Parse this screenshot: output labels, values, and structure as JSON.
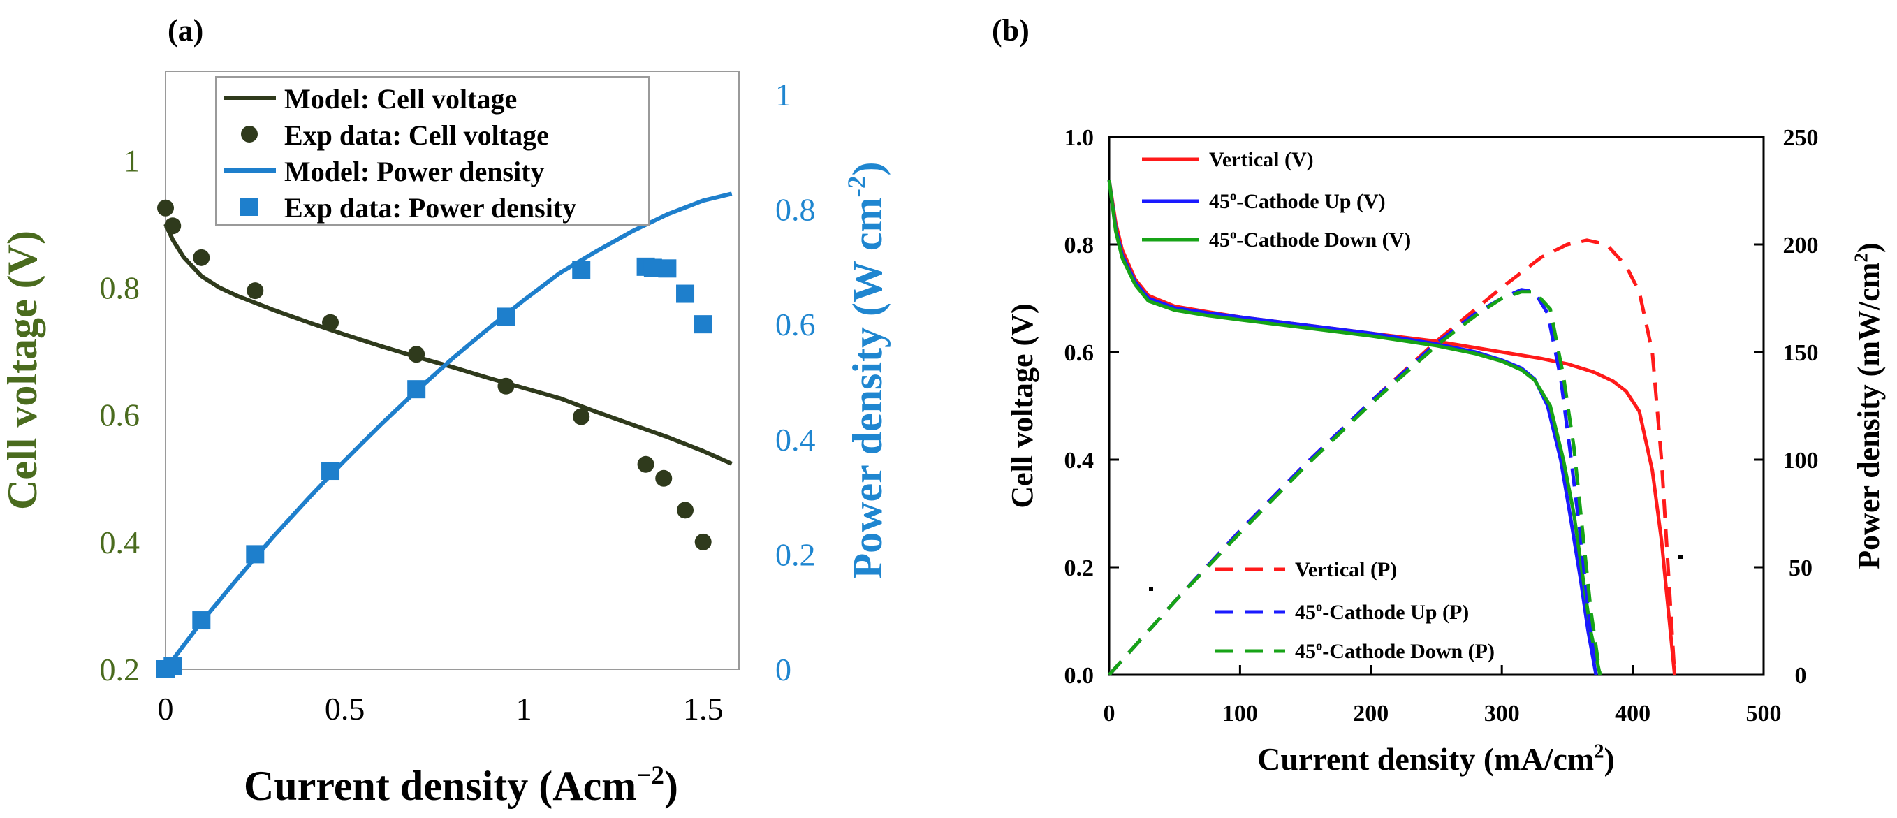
{
  "panels": {
    "a": {
      "label": "(a)"
    },
    "b": {
      "label": "(b)"
    }
  },
  "colors": {
    "dark_green": "#2f3a1c",
    "axis_green": "#4a6b1e",
    "blue": "#1e7fcc",
    "axis_blue": "#1f86d0",
    "red": "#ff1a1a",
    "b_blue": "#1a1aff",
    "b_green": "#17a317",
    "frame": "#9a9a9a",
    "black": "#000000"
  },
  "chart_data": [
    {
      "type": "line",
      "panel": "a",
      "title": "",
      "xlabel": "Current density (Acm",
      "xlabel_sup": "−2",
      "xlabel_end": ")",
      "ylabel": "Cell voltage (V)",
      "y2label": "Power density (W cm",
      "y2label_sup": "-2",
      "y2label_end": ")",
      "xlim": [
        0,
        1.6
      ],
      "ylim": [
        0.2,
        1.14
      ],
      "y2lim": [
        0,
        1.04
      ],
      "x_ticks": [
        0,
        0.5,
        1,
        1.5
      ],
      "x_tick_labels": [
        "0",
        "0.5",
        "1",
        "1.5"
      ],
      "y_ticks": [
        0.2,
        0.4,
        0.6,
        0.8,
        1
      ],
      "y_tick_labels": [
        "0.2",
        "0.4",
        "0.6",
        "0.8",
        "1"
      ],
      "y2_ticks": [
        0,
        0.2,
        0.4,
        0.6,
        0.8,
        1
      ],
      "y2_tick_labels": [
        "0",
        "0.2",
        "0.4",
        "0.6",
        "0.8",
        "1"
      ],
      "legend_position": "top-left",
      "series": [
        {
          "name": "Model: Cell voltage",
          "kind": "line",
          "axis": "left",
          "color": "#2f3a1c",
          "x": [
            0,
            0.02,
            0.05,
            0.1,
            0.15,
            0.2,
            0.3,
            0.4,
            0.5,
            0.6,
            0.7,
            0.8,
            0.9,
            1.0,
            1.1,
            1.2,
            1.3,
            1.4,
            1.5,
            1.58
          ],
          "y": [
            0.9,
            0.875,
            0.848,
            0.818,
            0.8,
            0.787,
            0.765,
            0.745,
            0.726,
            0.708,
            0.691,
            0.675,
            0.658,
            0.642,
            0.626,
            0.605,
            0.585,
            0.565,
            0.543,
            0.523
          ]
        },
        {
          "name": "Exp data: Cell voltage",
          "kind": "scatter",
          "marker": "circle",
          "axis": "left",
          "color": "#2f3a1c",
          "x": [
            0.0,
            0.02,
            0.1,
            0.25,
            0.46,
            0.7,
            0.95,
            1.16,
            1.34,
            1.39,
            1.45,
            1.5
          ],
          "y": [
            0.925,
            0.897,
            0.847,
            0.795,
            0.745,
            0.695,
            0.645,
            0.597,
            0.522,
            0.5,
            0.45,
            0.4
          ]
        },
        {
          "name": "Model: Power density",
          "kind": "line",
          "axis": "right",
          "color": "#1e7fcc",
          "x": [
            0,
            0.1,
            0.2,
            0.3,
            0.4,
            0.5,
            0.6,
            0.7,
            0.8,
            0.9,
            1.0,
            1.1,
            1.2,
            1.3,
            1.4,
            1.5,
            1.58
          ],
          "y": [
            0,
            0.082,
            0.157,
            0.23,
            0.298,
            0.363,
            0.425,
            0.484,
            0.54,
            0.592,
            0.642,
            0.689,
            0.726,
            0.761,
            0.791,
            0.815,
            0.827
          ]
        },
        {
          "name": "Exp data: Power density",
          "kind": "scatter",
          "marker": "square",
          "axis": "right",
          "color": "#1e7fcc",
          "x": [
            0.0,
            0.02,
            0.1,
            0.25,
            0.46,
            0.7,
            0.95,
            1.16,
            1.34,
            1.36,
            1.4,
            1.45,
            1.5
          ],
          "y": [
            0.0,
            0.005,
            0.085,
            0.2,
            0.345,
            0.487,
            0.613,
            0.694,
            0.7,
            0.698,
            0.697,
            0.653,
            0.6
          ]
        }
      ]
    },
    {
      "type": "line",
      "panel": "b",
      "title": "",
      "xlabel": "Current density (mA/cm",
      "xlabel_sup": "2",
      "xlabel_end": ")",
      "ylabel": "Cell voltage (V)",
      "y2label": "Power density (mW/cm",
      "y2label_sup": "2",
      "y2label_end": ")",
      "xlim": [
        0,
        500
      ],
      "ylim": [
        0,
        1.0
      ],
      "y2lim": [
        0,
        250
      ],
      "x_ticks": [
        0,
        100,
        200,
        300,
        400,
        500
      ],
      "x_tick_labels": [
        "0",
        "100",
        "200",
        "300",
        "400",
        "500"
      ],
      "y_ticks": [
        0,
        0.2,
        0.4,
        0.6,
        0.8,
        1.0
      ],
      "y_tick_labels": [
        "0.0",
        "0.2",
        "0.4",
        "0.6",
        "0.8",
        "1.0"
      ],
      "y2_ticks": [
        0,
        50,
        100,
        150,
        200,
        250
      ],
      "y2_tick_labels": [
        "0",
        "50",
        "100",
        "150",
        "200",
        "250"
      ],
      "legend_voltage_position": "top-left",
      "legend_power_position": "bottom-left",
      "series": [
        {
          "name": "Vertical (V)",
          "legend_text": "Vertical (V)",
          "kind": "line",
          "dash": false,
          "axis": "left",
          "color": "#ff1a1a",
          "x": [
            0,
            5,
            10,
            20,
            30,
            50,
            75,
            100,
            150,
            200,
            250,
            300,
            330,
            350,
            370,
            385,
            395,
            405,
            415,
            422,
            428,
            432
          ],
          "y": [
            0.92,
            0.84,
            0.79,
            0.735,
            0.705,
            0.685,
            0.675,
            0.665,
            0.65,
            0.635,
            0.62,
            0.6,
            0.588,
            0.578,
            0.563,
            0.546,
            0.527,
            0.49,
            0.38,
            0.25,
            0.1,
            0.0
          ]
        },
        {
          "name": "45-Cathode Up (V)",
          "legend_pre": "45",
          "legend_sup": "o",
          "legend_post": "-Cathode Up (V)",
          "kind": "line",
          "dash": false,
          "axis": "left",
          "color": "#1a1aff",
          "x": [
            0,
            5,
            10,
            20,
            30,
            50,
            75,
            100,
            150,
            200,
            250,
            280,
            300,
            315,
            325,
            335,
            345,
            352,
            360,
            366,
            372
          ],
          "y": [
            0.92,
            0.83,
            0.78,
            0.73,
            0.7,
            0.682,
            0.673,
            0.665,
            0.65,
            0.635,
            0.615,
            0.6,
            0.585,
            0.57,
            0.55,
            0.5,
            0.4,
            0.3,
            0.18,
            0.08,
            0.0
          ]
        },
        {
          "name": "45-Cathode Down (V)",
          "legend_pre": "45",
          "legend_sup": "o",
          "legend_post": "-Cathode Down (V)",
          "kind": "line",
          "dash": false,
          "axis": "left",
          "color": "#17a317",
          "x": [
            0,
            5,
            10,
            20,
            30,
            50,
            75,
            100,
            150,
            200,
            250,
            280,
            300,
            315,
            325,
            337,
            347,
            355,
            362,
            368,
            375
          ],
          "y": [
            0.92,
            0.825,
            0.775,
            0.725,
            0.695,
            0.678,
            0.668,
            0.66,
            0.645,
            0.63,
            0.612,
            0.597,
            0.583,
            0.567,
            0.548,
            0.5,
            0.4,
            0.3,
            0.18,
            0.08,
            0.0
          ]
        },
        {
          "name": "Vertical (P)",
          "legend_text": "Vertical (P)",
          "kind": "line",
          "dash": true,
          "axis": "right",
          "color": "#ff1a1a",
          "x": [
            0,
            50,
            100,
            150,
            200,
            250,
            300,
            330,
            350,
            365,
            380,
            395,
            405,
            415,
            422,
            428,
            432
          ],
          "y": [
            0,
            34,
            67,
            98,
            127,
            155,
            180,
            194,
            200,
            202,
            200,
            190,
            178,
            150,
            100,
            40,
            0
          ]
        },
        {
          "name": "45-Cathode Up (P)",
          "legend_pre": "45",
          "legend_sup": "o",
          "legend_post": "-Cathode Up (P)",
          "kind": "line",
          "dash": true,
          "axis": "right",
          "color": "#1a1aff",
          "x": [
            0,
            50,
            100,
            150,
            200,
            250,
            280,
            300,
            315,
            325,
            335,
            345,
            352,
            360,
            366,
            372
          ],
          "y": [
            0,
            34,
            67,
            98,
            127,
            154,
            168,
            175,
            179,
            178,
            168,
            138,
            105,
            65,
            30,
            0
          ]
        },
        {
          "name": "45-Cathode Down (P)",
          "legend_pre": "45",
          "legend_sup": "o",
          "legend_post": "-Cathode Down (P)",
          "kind": "line",
          "dash": true,
          "axis": "right",
          "color": "#17a317",
          "x": [
            0,
            50,
            100,
            150,
            200,
            250,
            280,
            300,
            315,
            325,
            337,
            347,
            355,
            362,
            368,
            375
          ],
          "y": [
            0,
            34,
            66,
            97,
            126,
            153,
            167,
            175,
            178,
            178,
            170,
            139,
            106,
            65,
            30,
            0
          ]
        }
      ]
    }
  ]
}
